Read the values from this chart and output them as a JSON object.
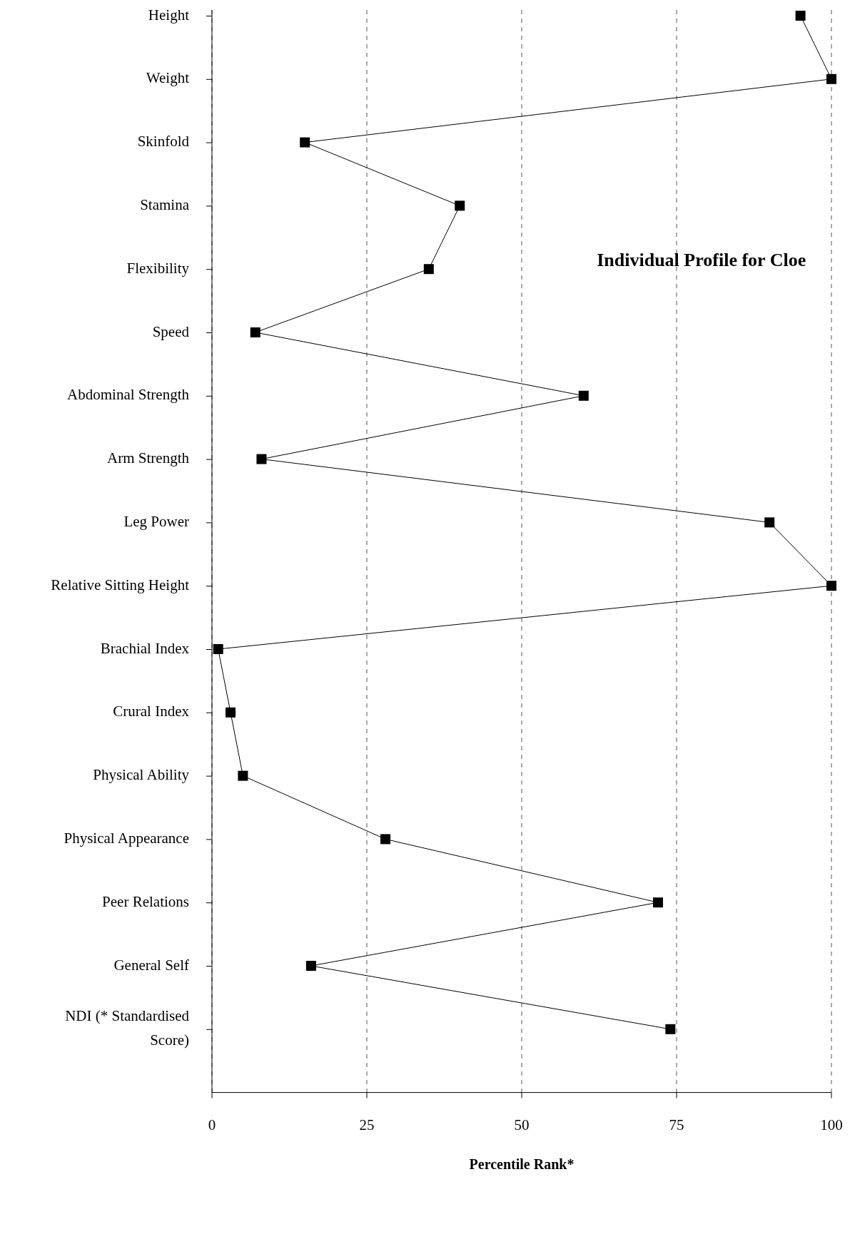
{
  "chart_data": {
    "type": "line",
    "orientation": "horizontal",
    "title": "Individual Profile for Cloe",
    "xlabel": "Percentile Rank*",
    "categories": [
      "Height",
      "Weight",
      "Skinfold",
      "Stamina",
      "Flexibility",
      "Speed",
      "Abdominal Strength",
      "Arm Strength",
      "Leg Power",
      "Relative Sitting Height",
      "Brachial Index",
      "Crural Index",
      "Physical Ability",
      "Physical Appearance",
      "Peer Relations",
      "General Self",
      "NDI (* Standardised Score)"
    ],
    "values": [
      95,
      100,
      15,
      40,
      35,
      7,
      60,
      8,
      90,
      100,
      1,
      3,
      5,
      28,
      72,
      16,
      74
    ],
    "color": "#000000",
    "xlim": [
      0,
      100
    ],
    "xticks": [
      0,
      25,
      50,
      75,
      100
    ],
    "grid": "x",
    "marker": "square",
    "line_style": "solid"
  }
}
